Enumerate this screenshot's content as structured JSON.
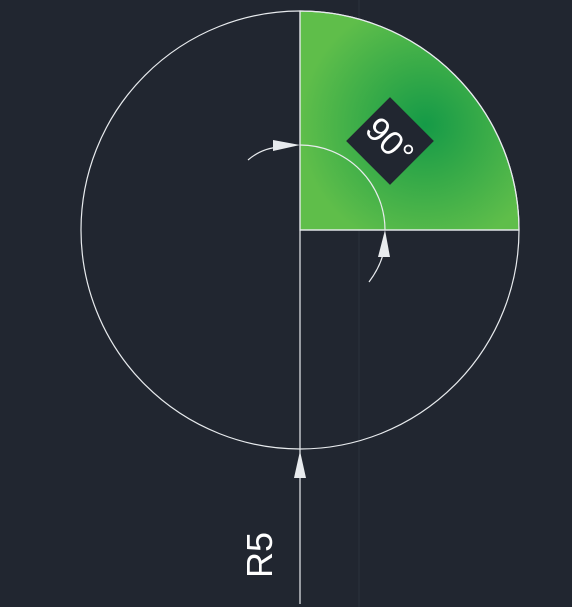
{
  "drawing": {
    "angle_label": "90°",
    "radius_label": "R5",
    "colors": {
      "background": "#212630",
      "outline": "#e8ebee",
      "sector_center": "#159a47",
      "sector_edge": "#5fbe4a",
      "label_plate": "#212630",
      "label_text": "#ffffff",
      "grid_line": "#2b313b"
    }
  }
}
